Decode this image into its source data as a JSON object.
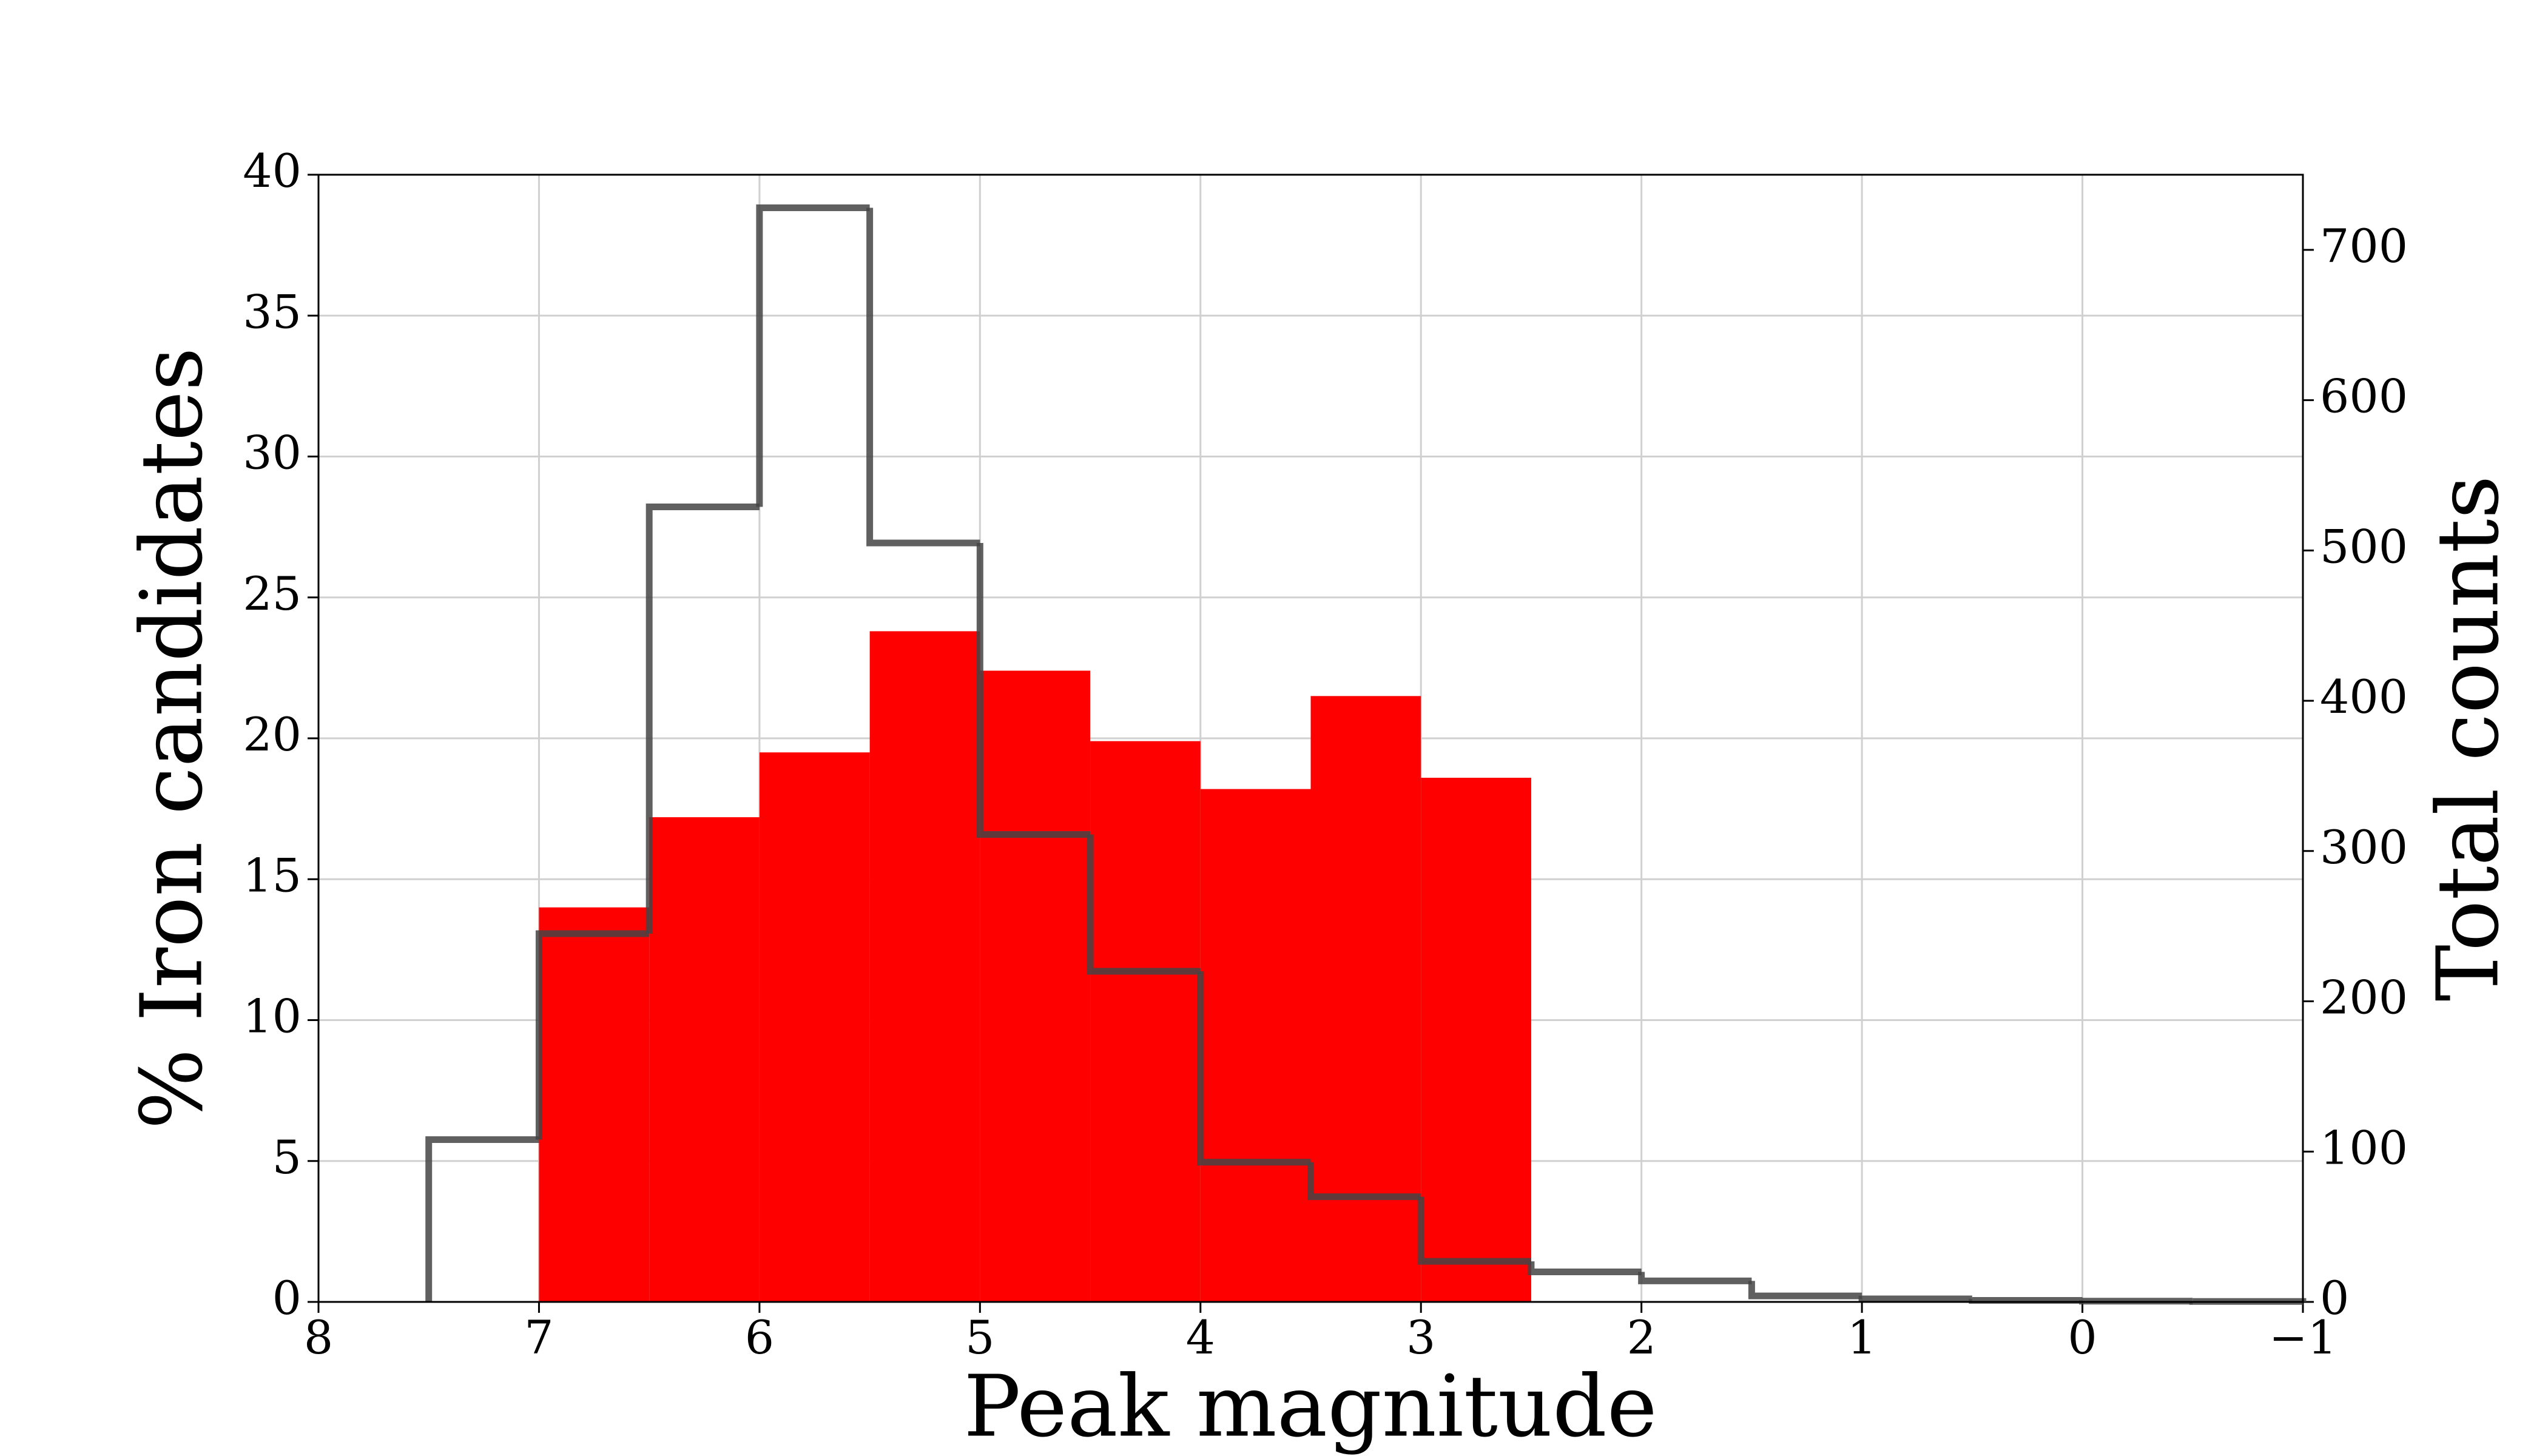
{
  "chart_data": {
    "type": "histogram",
    "xlabel": "Peak magnitude",
    "ylabel": "% Iron candidates",
    "y2label": "Total counts",
    "xlim": [
      8,
      -1
    ],
    "xticks": [
      8,
      7,
      6,
      5,
      4,
      3,
      2,
      1,
      0,
      {
        "value": -1,
        "label": "−1"
      }
    ],
    "ylim": [
      0,
      40
    ],
    "yticks": [
      0,
      5,
      10,
      15,
      20,
      25,
      30,
      35,
      40
    ],
    "y2lim": [
      0,
      750
    ],
    "y2ticks": [
      0,
      100,
      200,
      300,
      400,
      500,
      600,
      700
    ],
    "grid": true,
    "series": [
      {
        "color": "#ff0000",
        "style": "filled",
        "bins": [
          7,
          6.5,
          6,
          5.5,
          5,
          4.5,
          4,
          3.5,
          3,
          2.5
        ],
        "values": [
          14.0,
          17.2,
          19.5,
          23.8,
          22.4,
          19.9,
          18.2,
          21.5,
          18.6
        ]
      },
      {
        "color": "#444444",
        "style": "step",
        "axis": "y2",
        "bins": [
          7.5,
          7,
          6.5,
          6,
          5.5,
          5,
          4.5,
          4,
          3.5,
          3,
          2.5,
          2,
          1.5,
          1,
          0.5,
          0,
          -0.5,
          -1
        ],
        "values": [
          108,
          245,
          529,
          728,
          505,
          311,
          220,
          93,
          70,
          27,
          20,
          14,
          4,
          2,
          1,
          0.5,
          0.3
        ]
      }
    ]
  }
}
